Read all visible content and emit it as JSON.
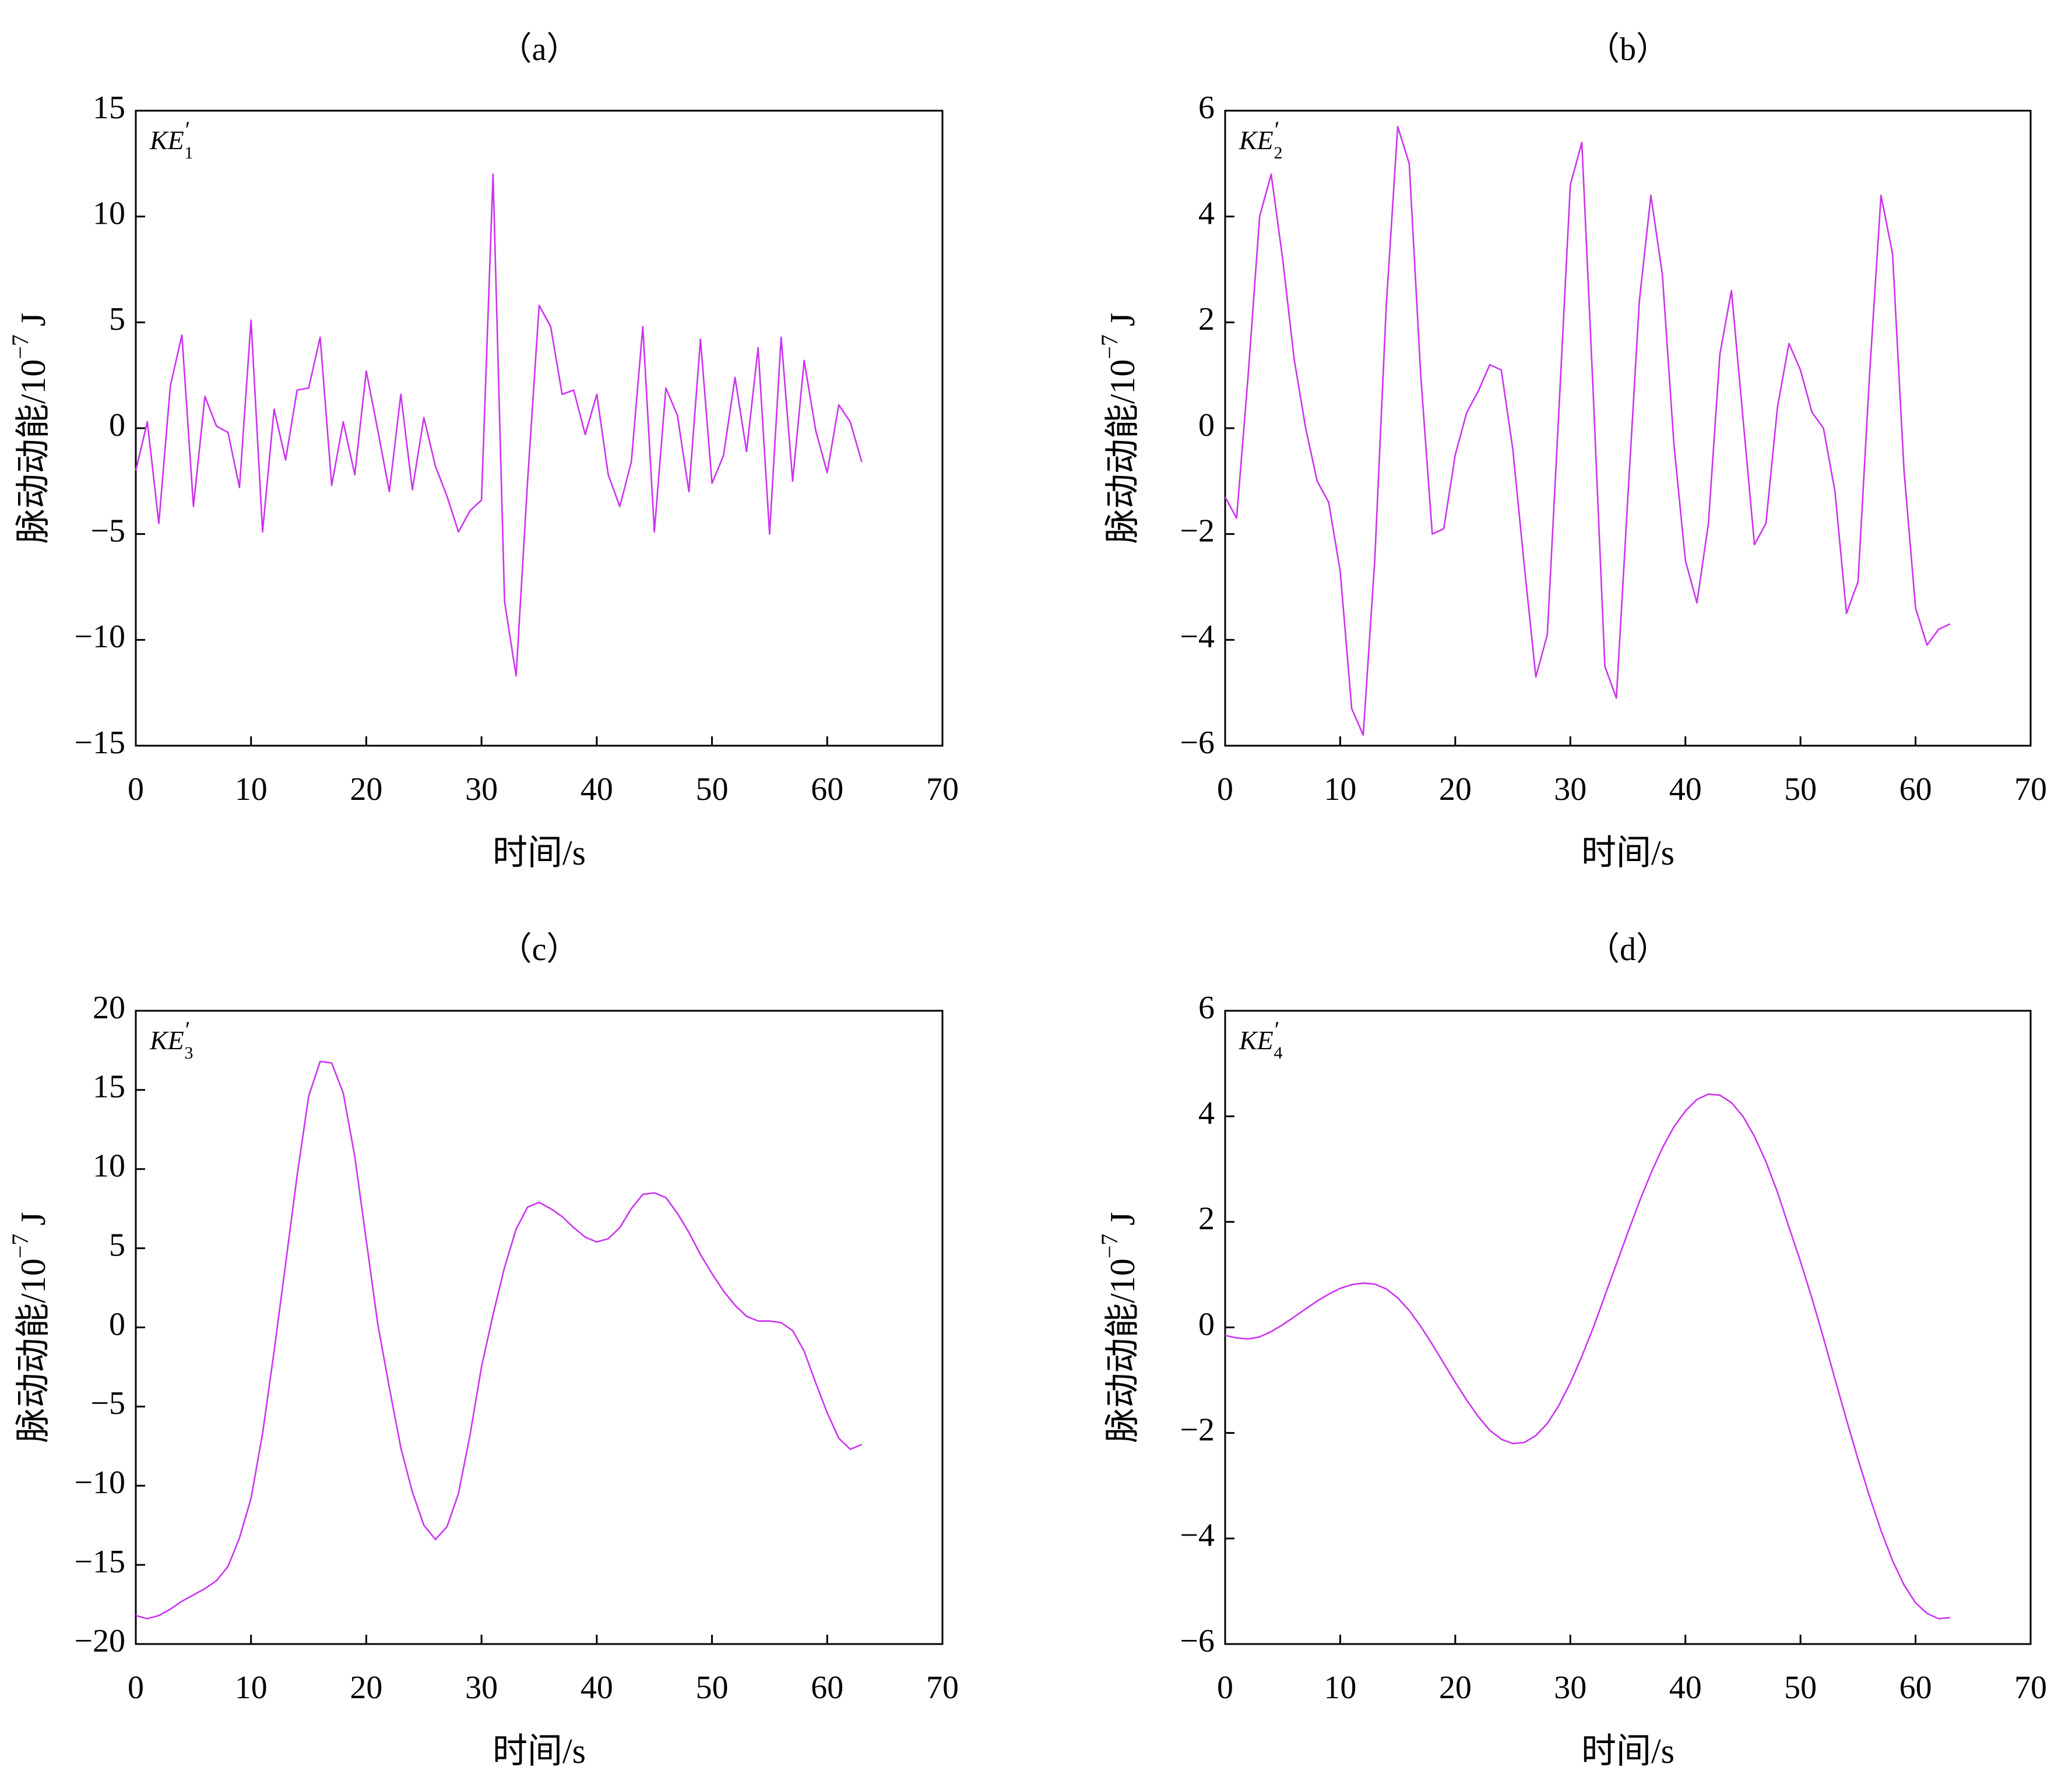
{
  "chart_data": [
    {
      "type": "line",
      "title": "（a）",
      "series_label": {
        "base": "KE",
        "prime": "′",
        "sub": "1"
      },
      "xlabel": "时间/s",
      "ylabel": {
        "text": "脉动动能/10",
        "exponent": "−7",
        "unit": "J"
      },
      "xlim": [
        0,
        70
      ],
      "ylim": [
        -15,
        15
      ],
      "xticks": [
        0,
        10,
        20,
        30,
        40,
        50,
        60,
        70
      ],
      "xticklabels": [
        "0",
        "10",
        "20",
        "30",
        "40",
        "50",
        "60",
        "70"
      ],
      "yticks": [
        15,
        10,
        5,
        0,
        -5,
        -10,
        -15
      ],
      "yticklabels": [
        "15",
        "10",
        "5",
        "0",
        "−5",
        "−10",
        "−15"
      ],
      "grid": false,
      "line_color": "#cc33ee",
      "x": [
        0,
        1,
        2,
        3,
        4,
        5,
        6,
        7,
        8,
        9,
        10,
        11,
        12,
        13,
        14,
        15,
        16,
        17,
        18,
        19,
        20,
        21,
        22,
        23,
        24,
        25,
        26,
        27,
        28,
        29,
        30,
        31,
        32,
        33,
        34,
        35,
        36,
        37,
        38,
        39,
        40,
        41,
        42,
        43,
        44,
        45,
        46,
        47,
        48,
        49,
        50,
        51,
        52,
        53,
        54,
        55,
        56,
        57,
        58,
        59,
        60,
        61,
        62,
        63
      ],
      "y": [
        -2,
        0.3,
        -4.5,
        2,
        4.4,
        -3.7,
        1.5,
        0.1,
        -0.2,
        -2.8,
        5.1,
        -4.9,
        0.9,
        -1.5,
        1.8,
        1.9,
        4.3,
        -2.7,
        0.3,
        -2.2,
        2.7,
        -0.1,
        -3,
        1.6,
        -2.9,
        0.5,
        -1.8,
        -3.2,
        -4.9,
        -3.9,
        -3.4,
        12,
        -8.2,
        -11.7,
        -2.5,
        5.8,
        4.8,
        1.6,
        1.8,
        -0.3,
        1.6,
        -2.2,
        -3.7,
        -1.6,
        4.8,
        -4.9,
        1.9,
        0.6,
        -3,
        4.2,
        -2.6,
        -1.3,
        2.4,
        -1.1,
        3.8,
        -5,
        4.3,
        -2.5,
        3.2,
        -0.1,
        -2.1,
        1.1,
        0.3,
        -1.6
      ]
    },
    {
      "type": "line",
      "title": "（b）",
      "series_label": {
        "base": "KE",
        "prime": "′",
        "sub": "2"
      },
      "xlabel": "时间/s",
      "ylabel": {
        "text": "脉动动能/10",
        "exponent": "−7",
        "unit": "J"
      },
      "xlim": [
        0,
        70
      ],
      "ylim": [
        -6,
        6
      ],
      "xticks": [
        0,
        10,
        20,
        30,
        40,
        50,
        60,
        70
      ],
      "xticklabels": [
        "0",
        "10",
        "20",
        "30",
        "40",
        "50",
        "60",
        "70"
      ],
      "yticks": [
        6,
        4,
        2,
        0,
        -2,
        -4,
        -6
      ],
      "yticklabels": [
        "6",
        "4",
        "2",
        "0",
        "−2",
        "−4",
        "−6"
      ],
      "grid": false,
      "line_color": "#cc33ee",
      "x": [
        0,
        1,
        2,
        3,
        4,
        5,
        6,
        7,
        8,
        9,
        10,
        11,
        12,
        13,
        14,
        15,
        16,
        17,
        18,
        19,
        20,
        21,
        22,
        23,
        24,
        25,
        26,
        27,
        28,
        29,
        30,
        31,
        32,
        33,
        34,
        35,
        36,
        37,
        38,
        39,
        40,
        41,
        42,
        43,
        44,
        45,
        46,
        47,
        48,
        49,
        50,
        51,
        52,
        53,
        54,
        55,
        56,
        57,
        58,
        59,
        60,
        61,
        62,
        63
      ],
      "y": [
        -1.3,
        -1.7,
        1.0,
        4.0,
        4.8,
        3.2,
        1.3,
        0.0,
        -1.0,
        -1.4,
        -2.7,
        -5.3,
        -5.8,
        -2.5,
        2.3,
        5.7,
        5.0,
        1.0,
        -2.0,
        -1.9,
        -0.5,
        0.3,
        0.7,
        1.2,
        1.1,
        -0.4,
        -2.6,
        -4.7,
        -3.9,
        0.3,
        4.6,
        5.4,
        0.6,
        -4.5,
        -5.1,
        -1.3,
        2.4,
        4.4,
        2.9,
        -0.3,
        -2.5,
        -3.3,
        -1.8,
        1.4,
        2.6,
        0.2,
        -2.2,
        -1.8,
        0.4,
        1.6,
        1.1,
        0.3,
        0.0,
        -1.2,
        -3.5,
        -2.9,
        1.0,
        4.4,
        3.3,
        -0.8,
        -3.4,
        -4.1,
        -3.8,
        -3.7
      ]
    },
    {
      "type": "line",
      "title": "（c）",
      "series_label": {
        "base": "KE",
        "prime": "′",
        "sub": "3"
      },
      "xlabel": "时间/s",
      "ylabel": {
        "text": "脉动动能/10",
        "exponent": "−7",
        "unit": "J"
      },
      "xlim": [
        0,
        70
      ],
      "ylim": [
        -20,
        20
      ],
      "xticks": [
        0,
        10,
        20,
        30,
        40,
        50,
        60,
        70
      ],
      "xticklabels": [
        "0",
        "10",
        "20",
        "30",
        "40",
        "50",
        "60",
        "70"
      ],
      "yticks": [
        20,
        15,
        10,
        5,
        0,
        -5,
        -10,
        -15,
        -20
      ],
      "yticklabels": [
        "20",
        "15",
        "10",
        "5",
        "0",
        "−5",
        "−10",
        "−15",
        "−20"
      ],
      "grid": false,
      "line_color": "#cc33ee",
      "x": [
        0,
        1,
        2,
        3,
        4,
        5,
        6,
        7,
        8,
        9,
        10,
        11,
        12,
        13,
        14,
        15,
        16,
        17,
        18,
        19,
        20,
        21,
        22,
        23,
        24,
        25,
        26,
        27,
        28,
        29,
        30,
        31,
        32,
        33,
        34,
        35,
        36,
        37,
        38,
        39,
        40,
        41,
        42,
        43,
        44,
        45,
        46,
        47,
        48,
        49,
        50,
        51,
        52,
        53,
        54,
        55,
        56,
        57,
        58,
        59,
        60,
        61,
        62,
        63
      ],
      "y": [
        -18.2,
        -18.4,
        -18.2,
        -17.8,
        -17.3,
        -16.9,
        -16.5,
        -16.0,
        -15.1,
        -13.3,
        -10.8,
        -6.7,
        -1.5,
        4.0,
        9.6,
        14.6,
        16.8,
        16.7,
        14.8,
        10.8,
        5.5,
        0.2,
        -3.8,
        -7.6,
        -10.4,
        -12.5,
        -13.4,
        -12.6,
        -10.5,
        -6.8,
        -2.5,
        0.8,
        3.8,
        6.2,
        7.6,
        7.9,
        7.5,
        7.0,
        6.3,
        5.7,
        5.4,
        5.6,
        6.3,
        7.5,
        8.4,
        8.5,
        8.2,
        7.2,
        6.0,
        4.6,
        3.4,
        2.3,
        1.4,
        0.7,
        0.4,
        0.4,
        0.3,
        -0.2,
        -1.5,
        -3.5,
        -5.4,
        -7.0,
        -7.7,
        -7.4
      ]
    },
    {
      "type": "line",
      "title": "（d）",
      "series_label": {
        "base": "KE",
        "prime": "′",
        "sub": "4"
      },
      "xlabel": "时间/s",
      "ylabel": {
        "text": "脉动动能/10",
        "exponent": "−7",
        "unit": "J"
      },
      "xlim": [
        0,
        70
      ],
      "ylim": [
        -6,
        6
      ],
      "xticks": [
        0,
        10,
        20,
        30,
        40,
        50,
        60,
        70
      ],
      "xticklabels": [
        "0",
        "10",
        "20",
        "30",
        "40",
        "50",
        "60",
        "70"
      ],
      "yticks": [
        6,
        4,
        2,
        0,
        -2,
        -4,
        -6
      ],
      "yticklabels": [
        "6",
        "4",
        "2",
        "0",
        "−2",
        "−4",
        "−6"
      ],
      "grid": false,
      "line_color": "#cc33ee",
      "x": [
        0,
        1,
        2,
        3,
        4,
        5,
        6,
        7,
        8,
        9,
        10,
        11,
        12,
        13,
        14,
        15,
        16,
        17,
        18,
        19,
        20,
        21,
        22,
        23,
        24,
        25,
        26,
        27,
        28,
        29,
        30,
        31,
        32,
        33,
        34,
        35,
        36,
        37,
        38,
        39,
        40,
        41,
        42,
        43,
        44,
        45,
        46,
        47,
        48,
        49,
        50,
        51,
        52,
        53,
        54,
        55,
        56,
        57,
        58,
        59,
        60,
        61,
        62,
        63
      ],
      "y": [
        -0.15,
        -0.2,
        -0.22,
        -0.18,
        -0.08,
        0.05,
        0.2,
        0.35,
        0.5,
        0.63,
        0.74,
        0.81,
        0.84,
        0.82,
        0.73,
        0.56,
        0.32,
        0.02,
        -0.32,
        -0.68,
        -1.04,
        -1.38,
        -1.69,
        -1.95,
        -2.12,
        -2.2,
        -2.18,
        -2.05,
        -1.82,
        -1.48,
        -1.05,
        -0.55,
        0.0,
        0.6,
        1.2,
        1.8,
        2.38,
        2.92,
        3.4,
        3.8,
        4.1,
        4.32,
        4.42,
        4.4,
        4.26,
        4.0,
        3.62,
        3.14,
        2.56,
        1.9,
        1.25,
        0.55,
        -0.2,
        -0.98,
        -1.75,
        -2.5,
        -3.2,
        -3.85,
        -4.42,
        -4.88,
        -5.22,
        -5.42,
        -5.52,
        -5.5
      ]
    }
  ]
}
